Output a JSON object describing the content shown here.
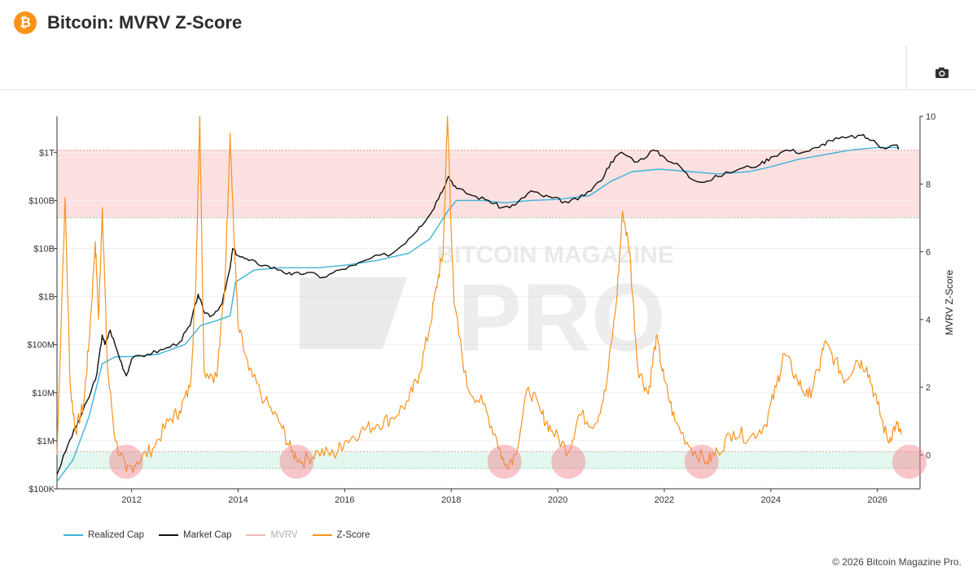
{
  "header": {
    "title": "Bitcoin: MVRV Z-Score",
    "logo_glyph": "₿"
  },
  "toolbar": {
    "camera_icon": "camera-icon"
  },
  "watermark": {
    "line1": "BITCOIN MAGAZINE",
    "line2": "PRO"
  },
  "legend": [
    {
      "label": "Realized Cap",
      "color": "#3cb4d8",
      "dim": false
    },
    {
      "label": "Market Cap",
      "color": "#111111",
      "dim": false
    },
    {
      "label": "MVRV",
      "color": "#f4b6b6",
      "dim": true
    },
    {
      "label": "Z-Score",
      "color": "#f7931a",
      "dim": false
    }
  ],
  "copyright": "© 2026 Bitcoin Magazine Pro.",
  "chart_data": {
    "type": "line",
    "x_ticks": [
      "2012",
      "2014",
      "2016",
      "2018",
      "2020",
      "2022",
      "2024",
      "2026"
    ],
    "x_range": [
      2010.6,
      2026.8
    ],
    "y_left_ticks": [
      "$100K",
      "$1M",
      "$10M",
      "$100M",
      "$1B",
      "$10B",
      "$100B",
      "$1T"
    ],
    "y_left_range_log10": [
      5,
      12.75
    ],
    "y_right_ticks": [
      "0",
      "2",
      "4",
      "6",
      "8",
      "10"
    ],
    "y_right_range": [
      -1,
      10
    ],
    "y_right_label": "MVRV Z-Score",
    "grid": true,
    "zones": [
      {
        "name": "overvalued",
        "from_z": 7,
        "to_z": 9,
        "color": "#fde0e0"
      },
      {
        "name": "undervalued",
        "from_z": -0.4,
        "to_z": 0.1,
        "color": "#e3f7ee"
      }
    ],
    "bottom_markers_x": [
      2011.9,
      2015.1,
      2019.0,
      2020.2,
      2022.7,
      2026.6
    ],
    "series": [
      {
        "name": "Market Cap",
        "color": "#111111",
        "axis": "left_log10",
        "points": [
          [
            2010.6,
            5.3
          ],
          [
            2010.8,
            5.9
          ],
          [
            2011.0,
            6.4
          ],
          [
            2011.2,
            6.9
          ],
          [
            2011.35,
            7.4
          ],
          [
            2011.45,
            8.2
          ],
          [
            2011.5,
            8.0
          ],
          [
            2011.6,
            8.3
          ],
          [
            2011.75,
            7.8
          ],
          [
            2011.9,
            7.35
          ],
          [
            2012.0,
            7.7
          ],
          [
            2012.3,
            7.8
          ],
          [
            2012.6,
            7.9
          ],
          [
            2012.9,
            8.05
          ],
          [
            2013.1,
            8.4
          ],
          [
            2013.25,
            9.05
          ],
          [
            2013.35,
            8.7
          ],
          [
            2013.5,
            8.6
          ],
          [
            2013.7,
            8.85
          ],
          [
            2013.85,
            9.6
          ],
          [
            2013.9,
            10.0
          ],
          [
            2014.0,
            9.85
          ],
          [
            2014.2,
            9.75
          ],
          [
            2014.5,
            9.65
          ],
          [
            2014.8,
            9.55
          ],
          [
            2015.0,
            9.45
          ],
          [
            2015.3,
            9.5
          ],
          [
            2015.6,
            9.4
          ],
          [
            2015.9,
            9.55
          ],
          [
            2016.2,
            9.65
          ],
          [
            2016.5,
            9.8
          ],
          [
            2016.9,
            9.9
          ],
          [
            2017.2,
            10.2
          ],
          [
            2017.4,
            10.45
          ],
          [
            2017.6,
            10.7
          ],
          [
            2017.8,
            11.15
          ],
          [
            2017.95,
            11.5
          ],
          [
            2018.1,
            11.25
          ],
          [
            2018.4,
            11.1
          ],
          [
            2018.7,
            11.0
          ],
          [
            2018.95,
            10.85
          ],
          [
            2019.2,
            10.9
          ],
          [
            2019.5,
            11.2
          ],
          [
            2019.7,
            11.1
          ],
          [
            2019.9,
            11.05
          ],
          [
            2020.2,
            10.95
          ],
          [
            2020.5,
            11.1
          ],
          [
            2020.8,
            11.4
          ],
          [
            2021.0,
            11.8
          ],
          [
            2021.2,
            12.0
          ],
          [
            2021.5,
            11.8
          ],
          [
            2021.8,
            12.05
          ],
          [
            2022.0,
            11.9
          ],
          [
            2022.3,
            11.7
          ],
          [
            2022.5,
            11.45
          ],
          [
            2022.8,
            11.4
          ],
          [
            2023.0,
            11.5
          ],
          [
            2023.4,
            11.65
          ],
          [
            2023.8,
            11.75
          ],
          [
            2024.0,
            11.9
          ],
          [
            2024.3,
            12.05
          ],
          [
            2024.6,
            12.0
          ],
          [
            2024.9,
            12.1
          ],
          [
            2025.1,
            12.25
          ],
          [
            2025.4,
            12.3
          ],
          [
            2025.7,
            12.35
          ],
          [
            2025.9,
            12.25
          ],
          [
            2026.1,
            12.1
          ],
          [
            2026.35,
            12.15
          ],
          [
            2026.4,
            12.1
          ]
        ]
      },
      {
        "name": "Realized Cap",
        "color": "#3cb4d8",
        "axis": "left_log10",
        "points": [
          [
            2010.6,
            5.15
          ],
          [
            2010.9,
            5.6
          ],
          [
            2011.2,
            6.5
          ],
          [
            2011.45,
            7.6
          ],
          [
            2011.7,
            7.75
          ],
          [
            2012.0,
            7.75
          ],
          [
            2012.5,
            7.8
          ],
          [
            2013.0,
            8.0
          ],
          [
            2013.3,
            8.4
          ],
          [
            2013.6,
            8.5
          ],
          [
            2013.85,
            8.6
          ],
          [
            2013.95,
            9.3
          ],
          [
            2014.3,
            9.55
          ],
          [
            2014.8,
            9.6
          ],
          [
            2015.5,
            9.6
          ],
          [
            2016.0,
            9.65
          ],
          [
            2016.6,
            9.75
          ],
          [
            2017.2,
            9.9
          ],
          [
            2017.6,
            10.2
          ],
          [
            2017.95,
            10.8
          ],
          [
            2018.1,
            11.0
          ],
          [
            2018.6,
            11.0
          ],
          [
            2019.0,
            10.95
          ],
          [
            2019.5,
            11.0
          ],
          [
            2020.0,
            11.02
          ],
          [
            2020.6,
            11.1
          ],
          [
            2021.0,
            11.4
          ],
          [
            2021.4,
            11.6
          ],
          [
            2021.9,
            11.65
          ],
          [
            2022.5,
            11.6
          ],
          [
            2023.0,
            11.55
          ],
          [
            2023.6,
            11.6
          ],
          [
            2024.0,
            11.7
          ],
          [
            2024.5,
            11.85
          ],
          [
            2025.0,
            11.95
          ],
          [
            2025.5,
            12.05
          ],
          [
            2026.0,
            12.1
          ],
          [
            2026.4,
            12.1
          ]
        ]
      },
      {
        "name": "Z-Score",
        "color": "#f7931a",
        "axis": "right",
        "points": [
          [
            2010.6,
            0.0
          ],
          [
            2010.75,
            7.6
          ],
          [
            2010.85,
            2.0
          ],
          [
            2010.95,
            0.7
          ],
          [
            2011.1,
            1.5
          ],
          [
            2011.2,
            3.3
          ],
          [
            2011.32,
            6.3
          ],
          [
            2011.38,
            4.0
          ],
          [
            2011.45,
            7.3
          ],
          [
            2011.55,
            2.5
          ],
          [
            2011.7,
            0.4
          ],
          [
            2011.9,
            -0.5
          ],
          [
            2012.1,
            -0.2
          ],
          [
            2012.4,
            0.2
          ],
          [
            2012.7,
            1.0
          ],
          [
            2012.9,
            1.3
          ],
          [
            2013.1,
            2.0
          ],
          [
            2013.2,
            4.8
          ],
          [
            2013.28,
            10.0
          ],
          [
            2013.36,
            2.5
          ],
          [
            2013.6,
            2.3
          ],
          [
            2013.75,
            5.0
          ],
          [
            2013.85,
            9.5
          ],
          [
            2013.92,
            6.5
          ],
          [
            2014.0,
            3.8
          ],
          [
            2014.2,
            2.5
          ],
          [
            2014.5,
            1.6
          ],
          [
            2014.8,
            0.9
          ],
          [
            2015.0,
            0.1
          ],
          [
            2015.2,
            -0.2
          ],
          [
            2015.5,
            0.1
          ],
          [
            2015.8,
            0.0
          ],
          [
            2016.0,
            0.4
          ],
          [
            2016.3,
            0.7
          ],
          [
            2016.6,
            0.9
          ],
          [
            2016.9,
            1.1
          ],
          [
            2017.2,
            1.6
          ],
          [
            2017.4,
            2.4
          ],
          [
            2017.6,
            3.8
          ],
          [
            2017.75,
            5.2
          ],
          [
            2017.85,
            6.0
          ],
          [
            2017.93,
            10.0
          ],
          [
            2018.05,
            4.5
          ],
          [
            2018.3,
            2.0
          ],
          [
            2018.6,
            1.5
          ],
          [
            2018.85,
            0.5
          ],
          [
            2019.0,
            -0.3
          ],
          [
            2019.2,
            0.0
          ],
          [
            2019.45,
            2.0
          ],
          [
            2019.7,
            1.2
          ],
          [
            2019.9,
            0.7
          ],
          [
            2020.2,
            0.1
          ],
          [
            2020.4,
            1.2
          ],
          [
            2020.7,
            0.9
          ],
          [
            2020.9,
            1.9
          ],
          [
            2021.1,
            4.5
          ],
          [
            2021.22,
            7.2
          ],
          [
            2021.35,
            6.0
          ],
          [
            2021.5,
            2.6
          ],
          [
            2021.7,
            1.8
          ],
          [
            2021.85,
            3.5
          ],
          [
            2022.0,
            2.2
          ],
          [
            2022.2,
            1.0
          ],
          [
            2022.5,
            0.2
          ],
          [
            2022.8,
            -0.2
          ],
          [
            2023.0,
            0.1
          ],
          [
            2023.3,
            0.7
          ],
          [
            2023.6,
            0.5
          ],
          [
            2023.9,
            0.9
          ],
          [
            2024.1,
            2.0
          ],
          [
            2024.25,
            3.0
          ],
          [
            2024.5,
            2.2
          ],
          [
            2024.7,
            1.7
          ],
          [
            2024.9,
            2.5
          ],
          [
            2025.0,
            3.3
          ],
          [
            2025.2,
            2.8
          ],
          [
            2025.4,
            2.2
          ],
          [
            2025.6,
            2.8
          ],
          [
            2025.8,
            2.6
          ],
          [
            2026.0,
            1.5
          ],
          [
            2026.2,
            0.4
          ],
          [
            2026.35,
            0.9
          ],
          [
            2026.45,
            0.6
          ]
        ]
      }
    ]
  }
}
